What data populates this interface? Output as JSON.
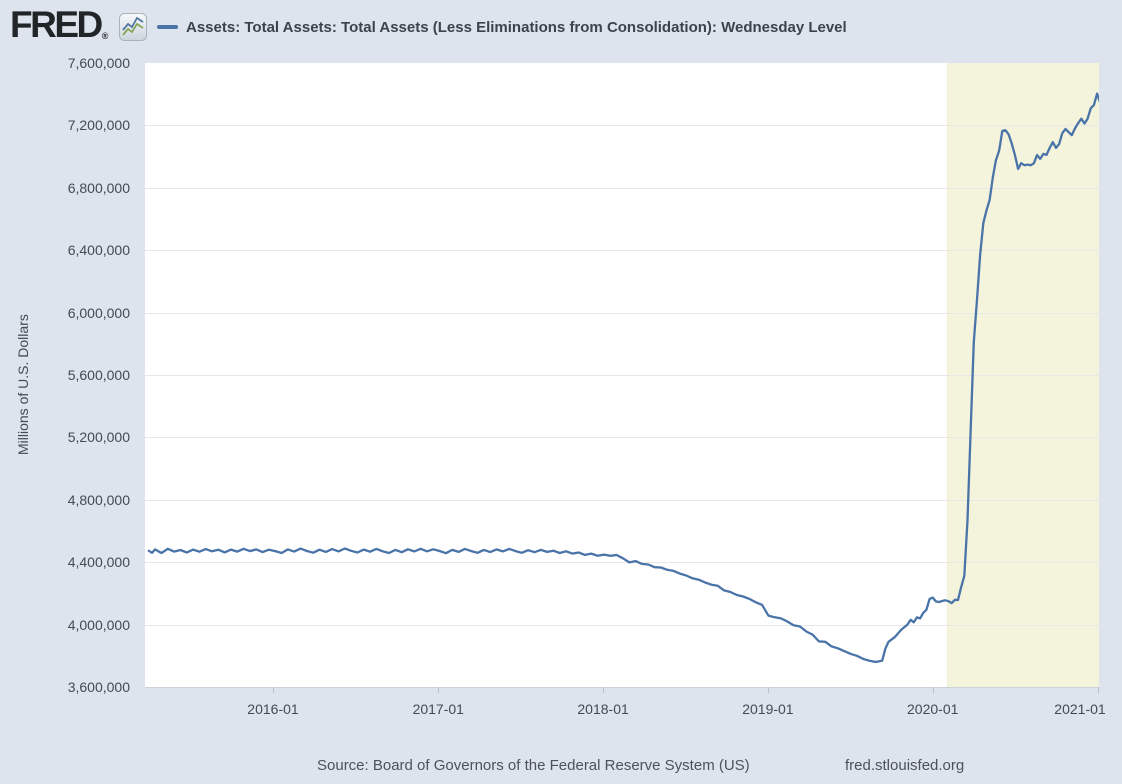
{
  "header": {
    "brand": "FRED",
    "registered": "®",
    "series_label": "Assets: Total Assets: Total Assets (Less Eliminations from Consolidation): Wednesday Level"
  },
  "axis": {
    "y_title": "Millions of U.S. Dollars"
  },
  "footer": {
    "source": "Source: Board of Governors of the Federal Reserve System (US)",
    "site": "fred.stlouisfed.org"
  },
  "icons": {
    "logo_chart_icon": "zigzag-line-chart"
  },
  "chart_data": {
    "type": "line",
    "title": "Assets: Total Assets: Total Assets (Less Eliminations from Consolidation): Wednesday Level",
    "xlabel": "",
    "ylabel": "Millions of U.S. Dollars",
    "ylim": [
      3600000,
      7600000
    ],
    "grid": "horizontal-only",
    "legend_position": "top",
    "colors": {
      "page_bg": "#dde4ed",
      "plot_bg": "#ffffff",
      "line": "#4a74a8",
      "recession_band": "#f4f4dd",
      "gridline": "#e8e8e8",
      "text": "#444a52"
    },
    "x_anchor": {
      "date0": "2016-01-01",
      "date1": "2021-01-01"
    },
    "y_ticks": [
      {
        "value": 7600000,
        "label": "7,600,000"
      },
      {
        "value": 7200000,
        "label": "7,200,000"
      },
      {
        "value": 6800000,
        "label": "6,800,000"
      },
      {
        "value": 6400000,
        "label": "6,400,000"
      },
      {
        "value": 6000000,
        "label": "6,000,000"
      },
      {
        "value": 5600000,
        "label": "5,600,000"
      },
      {
        "value": 5200000,
        "label": "5,200,000"
      },
      {
        "value": 4800000,
        "label": "4,800,000"
      },
      {
        "value": 4400000,
        "label": "4,400,000"
      },
      {
        "value": 4000000,
        "label": "4,000,000"
      },
      {
        "value": 3600000,
        "label": "3,600,000"
      }
    ],
    "x_ticks": [
      {
        "date": "2016-01-01",
        "label": "2016-01"
      },
      {
        "date": "2017-01-01",
        "label": "2017-01"
      },
      {
        "date": "2018-01-01",
        "label": "2018-01"
      },
      {
        "date": "2019-01-01",
        "label": "2019-01"
      },
      {
        "date": "2020-01-01",
        "label": "2020-01"
      },
      {
        "date": "2021-01-01",
        "label": "2021-01"
      }
    ],
    "recession_band": {
      "start": "2020-02-01",
      "end": "2021-01-20"
    },
    "series": [
      {
        "name": "Assets: Total Assets: Total Assets (Less Eliminations from Consolidation): Wednesday Level",
        "points": [
          [
            "2015-04-01",
            4473000
          ],
          [
            "2015-04-08",
            4460000
          ],
          [
            "2015-04-15",
            4482000
          ],
          [
            "2015-04-22",
            4470000
          ],
          [
            "2015-04-29",
            4459000
          ],
          [
            "2015-05-13",
            4486000
          ],
          [
            "2015-05-27",
            4468000
          ],
          [
            "2015-06-10",
            4478000
          ],
          [
            "2015-06-24",
            4462000
          ],
          [
            "2015-07-08",
            4481000
          ],
          [
            "2015-07-22",
            4467000
          ],
          [
            "2015-08-05",
            4484000
          ],
          [
            "2015-08-19",
            4470000
          ],
          [
            "2015-09-02",
            4480000
          ],
          [
            "2015-09-16",
            4463000
          ],
          [
            "2015-09-30",
            4481000
          ],
          [
            "2015-10-14",
            4468000
          ],
          [
            "2015-10-28",
            4486000
          ],
          [
            "2015-11-11",
            4471000
          ],
          [
            "2015-11-25",
            4482000
          ],
          [
            "2015-12-09",
            4465000
          ],
          [
            "2015-12-23",
            4480000
          ],
          [
            "2016-01-06",
            4471000
          ],
          [
            "2016-01-20",
            4459000
          ],
          [
            "2016-02-03",
            4482000
          ],
          [
            "2016-02-17",
            4468000
          ],
          [
            "2016-03-02",
            4487000
          ],
          [
            "2016-03-16",
            4472000
          ],
          [
            "2016-03-30",
            4461000
          ],
          [
            "2016-04-13",
            4480000
          ],
          [
            "2016-04-27",
            4466000
          ],
          [
            "2016-05-11",
            4484000
          ],
          [
            "2016-05-25",
            4469000
          ],
          [
            "2016-06-08",
            4488000
          ],
          [
            "2016-06-22",
            4473000
          ],
          [
            "2016-07-06",
            4462000
          ],
          [
            "2016-07-20",
            4481000
          ],
          [
            "2016-08-03",
            4467000
          ],
          [
            "2016-08-17",
            4485000
          ],
          [
            "2016-08-31",
            4470000
          ],
          [
            "2016-09-14",
            4459000
          ],
          [
            "2016-09-28",
            4479000
          ],
          [
            "2016-10-12",
            4464000
          ],
          [
            "2016-10-26",
            4483000
          ],
          [
            "2016-11-09",
            4469000
          ],
          [
            "2016-11-23",
            4486000
          ],
          [
            "2016-12-07",
            4470000
          ],
          [
            "2016-12-21",
            4483000
          ],
          [
            "2017-01-04",
            4472000
          ],
          [
            "2017-01-18",
            4458000
          ],
          [
            "2017-02-01",
            4479000
          ],
          [
            "2017-02-15",
            4466000
          ],
          [
            "2017-03-01",
            4485000
          ],
          [
            "2017-03-15",
            4471000
          ],
          [
            "2017-03-29",
            4460000
          ],
          [
            "2017-04-12",
            4479000
          ],
          [
            "2017-04-26",
            4465000
          ],
          [
            "2017-05-10",
            4482000
          ],
          [
            "2017-05-24",
            4469000
          ],
          [
            "2017-06-07",
            4485000
          ],
          [
            "2017-06-21",
            4471000
          ],
          [
            "2017-07-05",
            4460000
          ],
          [
            "2017-07-19",
            4477000
          ],
          [
            "2017-08-02",
            4464000
          ],
          [
            "2017-08-16",
            4479000
          ],
          [
            "2017-08-30",
            4466000
          ],
          [
            "2017-09-13",
            4474000
          ],
          [
            "2017-09-27",
            4459000
          ],
          [
            "2017-10-11",
            4470000
          ],
          [
            "2017-10-25",
            4455000
          ],
          [
            "2017-11-08",
            4462000
          ],
          [
            "2017-11-22",
            4447000
          ],
          [
            "2017-12-06",
            4455000
          ],
          [
            "2017-12-20",
            4441000
          ],
          [
            "2018-01-03",
            4449000
          ],
          [
            "2018-01-17",
            4441000
          ],
          [
            "2018-01-31",
            4446000
          ],
          [
            "2018-02-14",
            4425000
          ],
          [
            "2018-02-28",
            4399000
          ],
          [
            "2018-03-14",
            4407000
          ],
          [
            "2018-03-28",
            4389000
          ],
          [
            "2018-04-11",
            4385000
          ],
          [
            "2018-04-25",
            4368000
          ],
          [
            "2018-05-09",
            4366000
          ],
          [
            "2018-05-23",
            4351000
          ],
          [
            "2018-06-06",
            4344000
          ],
          [
            "2018-06-20",
            4327000
          ],
          [
            "2018-07-04",
            4315000
          ],
          [
            "2018-07-18",
            4297000
          ],
          [
            "2018-08-01",
            4288000
          ],
          [
            "2018-08-15",
            4270000
          ],
          [
            "2018-08-29",
            4256000
          ],
          [
            "2018-09-12",
            4249000
          ],
          [
            "2018-09-26",
            4219000
          ],
          [
            "2018-10-10",
            4209000
          ],
          [
            "2018-10-24",
            4190000
          ],
          [
            "2018-11-07",
            4180000
          ],
          [
            "2018-11-21",
            4165000
          ],
          [
            "2018-12-05",
            4143000
          ],
          [
            "2018-12-19",
            4127000
          ],
          [
            "2019-01-02",
            4058000
          ],
          [
            "2019-01-16",
            4047000
          ],
          [
            "2019-01-30",
            4040000
          ],
          [
            "2019-02-13",
            4020000
          ],
          [
            "2019-02-27",
            3996000
          ],
          [
            "2019-03-13",
            3988000
          ],
          [
            "2019-03-27",
            3956000
          ],
          [
            "2019-04-10",
            3936000
          ],
          [
            "2019-04-24",
            3892000
          ],
          [
            "2019-05-08",
            3890000
          ],
          [
            "2019-05-22",
            3860000
          ],
          [
            "2019-06-05",
            3848000
          ],
          [
            "2019-06-19",
            3830000
          ],
          [
            "2019-07-03",
            3813000
          ],
          [
            "2019-07-17",
            3800000
          ],
          [
            "2019-07-31",
            3780000
          ],
          [
            "2019-08-14",
            3768000
          ],
          [
            "2019-08-28",
            3760000
          ],
          [
            "2019-09-11",
            3769000
          ],
          [
            "2019-09-18",
            3845000
          ],
          [
            "2019-09-25",
            3890000
          ],
          [
            "2019-10-09",
            3920000
          ],
          [
            "2019-10-23",
            3966000
          ],
          [
            "2019-11-06",
            4000000
          ],
          [
            "2019-11-13",
            4031000
          ],
          [
            "2019-11-20",
            4015000
          ],
          [
            "2019-11-27",
            4046000
          ],
          [
            "2019-12-04",
            4040000
          ],
          [
            "2019-12-11",
            4075000
          ],
          [
            "2019-12-18",
            4095000
          ],
          [
            "2019-12-25",
            4165000
          ],
          [
            "2020-01-01",
            4173000
          ],
          [
            "2020-01-08",
            4149000
          ],
          [
            "2020-01-15",
            4145000
          ],
          [
            "2020-01-22",
            4151000
          ],
          [
            "2020-01-29",
            4156000
          ],
          [
            "2020-02-05",
            4150000
          ],
          [
            "2020-02-12",
            4138000
          ],
          [
            "2020-02-19",
            4159000
          ],
          [
            "2020-02-26",
            4158000
          ],
          [
            "2020-03-04",
            4241000
          ],
          [
            "2020-03-11",
            4312000
          ],
          [
            "2020-03-18",
            4668000
          ],
          [
            "2020-03-25",
            5254000
          ],
          [
            "2020-04-01",
            5812000
          ],
          [
            "2020-04-08",
            6083000
          ],
          [
            "2020-04-15",
            6367000
          ],
          [
            "2020-04-22",
            6573000
          ],
          [
            "2020-04-29",
            6656000
          ],
          [
            "2020-05-06",
            6721000
          ],
          [
            "2020-05-13",
            6866000
          ],
          [
            "2020-05-20",
            6977000
          ],
          [
            "2020-05-27",
            7037000
          ],
          [
            "2020-06-03",
            7165000
          ],
          [
            "2020-06-10",
            7169000
          ],
          [
            "2020-06-17",
            7143000
          ],
          [
            "2020-06-24",
            7082000
          ],
          [
            "2020-07-01",
            7010000
          ],
          [
            "2020-07-08",
            6921000
          ],
          [
            "2020-07-15",
            6958000
          ],
          [
            "2020-07-22",
            6945000
          ],
          [
            "2020-07-29",
            6949000
          ],
          [
            "2020-08-05",
            6945000
          ],
          [
            "2020-08-12",
            6957000
          ],
          [
            "2020-08-19",
            7010000
          ],
          [
            "2020-08-26",
            6985000
          ],
          [
            "2020-09-02",
            7017000
          ],
          [
            "2020-09-09",
            7011000
          ],
          [
            "2020-09-16",
            7056000
          ],
          [
            "2020-09-23",
            7093000
          ],
          [
            "2020-09-30",
            7056000
          ],
          [
            "2020-10-07",
            7082000
          ],
          [
            "2020-10-14",
            7150000
          ],
          [
            "2020-10-21",
            7177000
          ],
          [
            "2020-10-28",
            7157000
          ],
          [
            "2020-11-04",
            7138000
          ],
          [
            "2020-11-11",
            7181000
          ],
          [
            "2020-11-18",
            7214000
          ],
          [
            "2020-11-25",
            7243000
          ],
          [
            "2020-12-02",
            7212000
          ],
          [
            "2020-12-09",
            7243000
          ],
          [
            "2020-12-16",
            7310000
          ],
          [
            "2020-12-23",
            7330000
          ],
          [
            "2020-12-30",
            7404000
          ],
          [
            "2021-01-06",
            7342000
          ]
        ]
      }
    ]
  }
}
